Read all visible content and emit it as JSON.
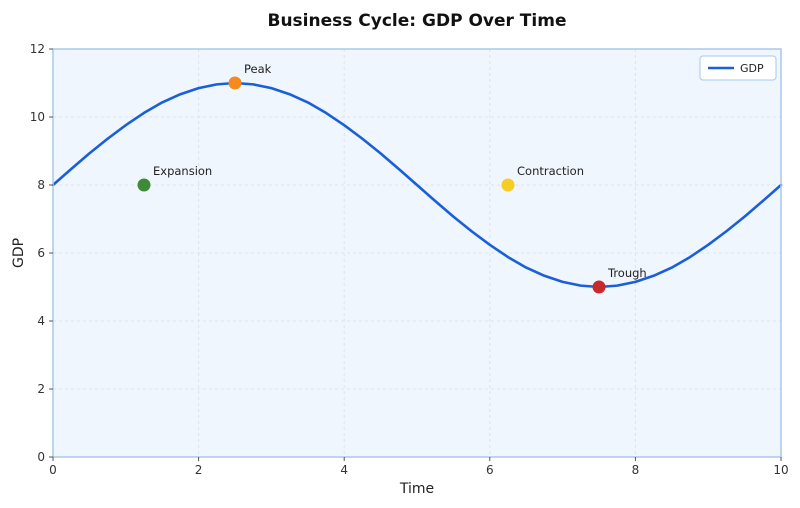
{
  "chart_data": {
    "type": "line",
    "title": "Business Cycle: GDP Over Time",
    "xlabel": "Time",
    "ylabel": "GDP",
    "xlim": [
      0,
      10
    ],
    "ylim": [
      0,
      12
    ],
    "xticks": [
      0,
      2,
      4,
      6,
      8,
      10
    ],
    "yticks": [
      0,
      2,
      4,
      6,
      8,
      10,
      12
    ],
    "grid": true,
    "legend_position": "top-right",
    "series": [
      {
        "name": "GDP",
        "color": "#1a5fd9",
        "x": [
          0,
          0.25,
          0.5,
          0.75,
          1.0,
          1.25,
          1.5,
          1.75,
          2.0,
          2.25,
          2.5,
          2.75,
          3.0,
          3.25,
          3.5,
          3.75,
          4.0,
          4.25,
          4.5,
          4.75,
          5.0,
          5.25,
          5.5,
          5.75,
          6.0,
          6.25,
          6.5,
          6.75,
          7.0,
          7.25,
          7.5,
          7.75,
          8.0,
          8.25,
          8.5,
          8.75,
          9.0,
          9.25,
          9.5,
          9.75,
          10.0
        ],
        "y": [
          8.0,
          8.47,
          8.93,
          9.36,
          9.76,
          10.12,
          10.43,
          10.67,
          10.85,
          10.96,
          11.0,
          10.96,
          10.85,
          10.67,
          10.43,
          10.12,
          9.76,
          9.36,
          8.93,
          8.47,
          8.0,
          7.53,
          7.07,
          6.64,
          6.24,
          5.88,
          5.57,
          5.33,
          5.15,
          5.04,
          5.0,
          5.04,
          5.15,
          5.33,
          5.57,
          5.88,
          6.24,
          6.64,
          7.07,
          7.53,
          8.0
        ]
      }
    ],
    "annotations": [
      {
        "label": "Expansion",
        "x": 1.25,
        "y": 8,
        "color": "#3d8b37"
      },
      {
        "label": "Peak",
        "x": 2.5,
        "y": 11,
        "color": "#f58a1f"
      },
      {
        "label": "Contraction",
        "x": 6.25,
        "y": 8,
        "color": "#f7cc23"
      },
      {
        "label": "Trough",
        "x": 7.5,
        "y": 5,
        "color": "#c62a2a"
      }
    ],
    "plot_background": "#f0f6fd",
    "frame_color": "#a8c8ec"
  }
}
